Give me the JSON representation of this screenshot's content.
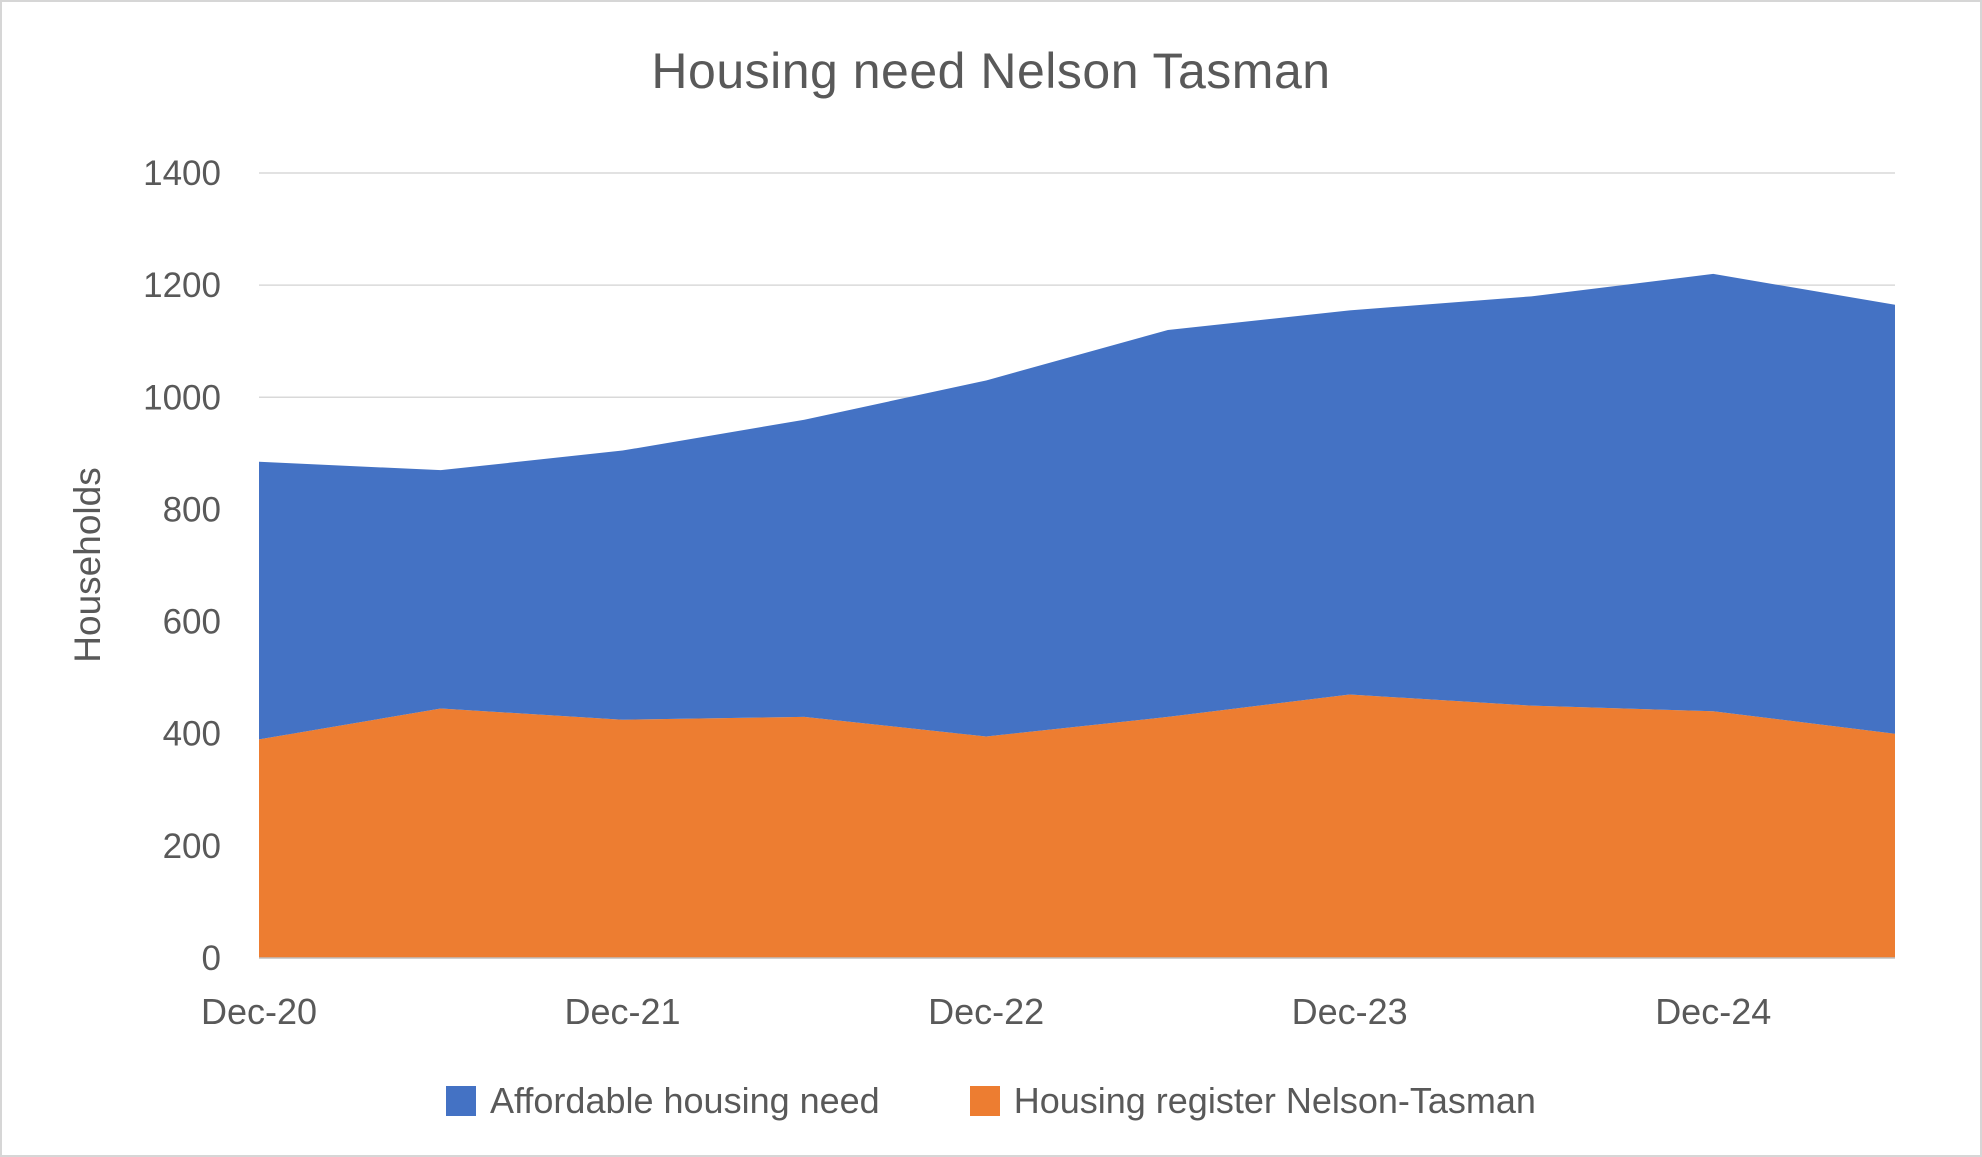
{
  "chart_data": {
    "type": "area",
    "stacked": true,
    "title": "Housing need Nelson Tasman",
    "ylabel": "Households",
    "xlabel": "",
    "ylim": [
      0,
      1400
    ],
    "ytick_interval": 200,
    "ytick_labels": [
      "0",
      "200",
      "400",
      "600",
      "800",
      "1000",
      "1200",
      "1400"
    ],
    "xticks": [
      {
        "index": 0,
        "label": "Dec-20"
      },
      {
        "index": 2,
        "label": "Dec-21"
      },
      {
        "index": 4,
        "label": "Dec-22"
      },
      {
        "index": 6,
        "label": "Dec-23"
      },
      {
        "index": 8,
        "label": "Dec-24"
      }
    ],
    "series": [
      {
        "name": "Housing register Nelson-Tasman",
        "color": "#ED7D31",
        "values": [
          390,
          445,
          425,
          430,
          395,
          430,
          470,
          450,
          440,
          400
        ]
      },
      {
        "name": "Affordable housing need",
        "color": "#4472C4",
        "values": [
          495,
          425,
          480,
          530,
          635,
          690,
          685,
          730,
          780,
          765
        ]
      }
    ],
    "stacked_totals": [
      885,
      870,
      905,
      960,
      1030,
      1120,
      1155,
      1180,
      1220,
      1165
    ],
    "legend": [
      {
        "label": "Affordable housing need",
        "color": "#4472C4"
      },
      {
        "label": "Housing register Nelson-Tasman",
        "color": "#ED7D31"
      }
    ],
    "grid": true,
    "legend_position": "bottom",
    "colors": {
      "grid": "#D9D9D9",
      "axis_line": "#BFBFBF",
      "text": "#595959",
      "background": "#FFFFFF"
    }
  }
}
